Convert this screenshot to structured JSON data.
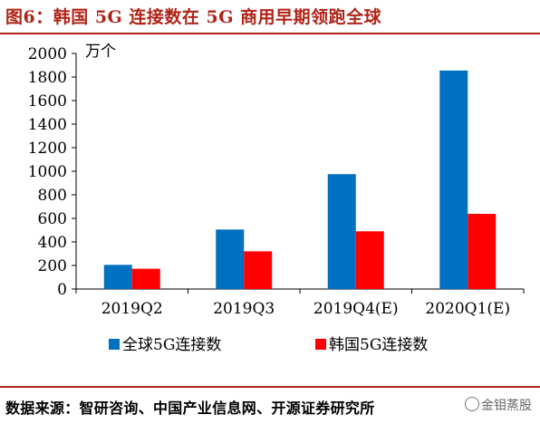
{
  "title": "图6：韩国 5G 连接数在 5G 商用早期领跑全球",
  "source": "数据来源：智研咨询、中国产业信息网、开源证券研究所",
  "watermark": "金钼蒸股",
  "colors": {
    "accent": "#b02418",
    "global": "#0070c0",
    "korea": "#ff0000"
  },
  "chart_data": {
    "type": "bar",
    "unit_label": "万个",
    "categories": [
      "2019Q2",
      "2019Q3",
      "2019Q4(E)",
      "2020Q1(E)"
    ],
    "series": [
      {
        "name": "全球5G连接数",
        "values": [
          205,
          505,
          975,
          1855
        ]
      },
      {
        "name": "韩国5G连接数",
        "values": [
          172,
          320,
          490,
          638
        ]
      }
    ],
    "ylim": [
      0,
      2000
    ],
    "yticks": [
      0,
      200,
      400,
      600,
      800,
      1000,
      1200,
      1400,
      1600,
      1800,
      2000
    ],
    "grid": false,
    "legend_position": "bottom"
  }
}
